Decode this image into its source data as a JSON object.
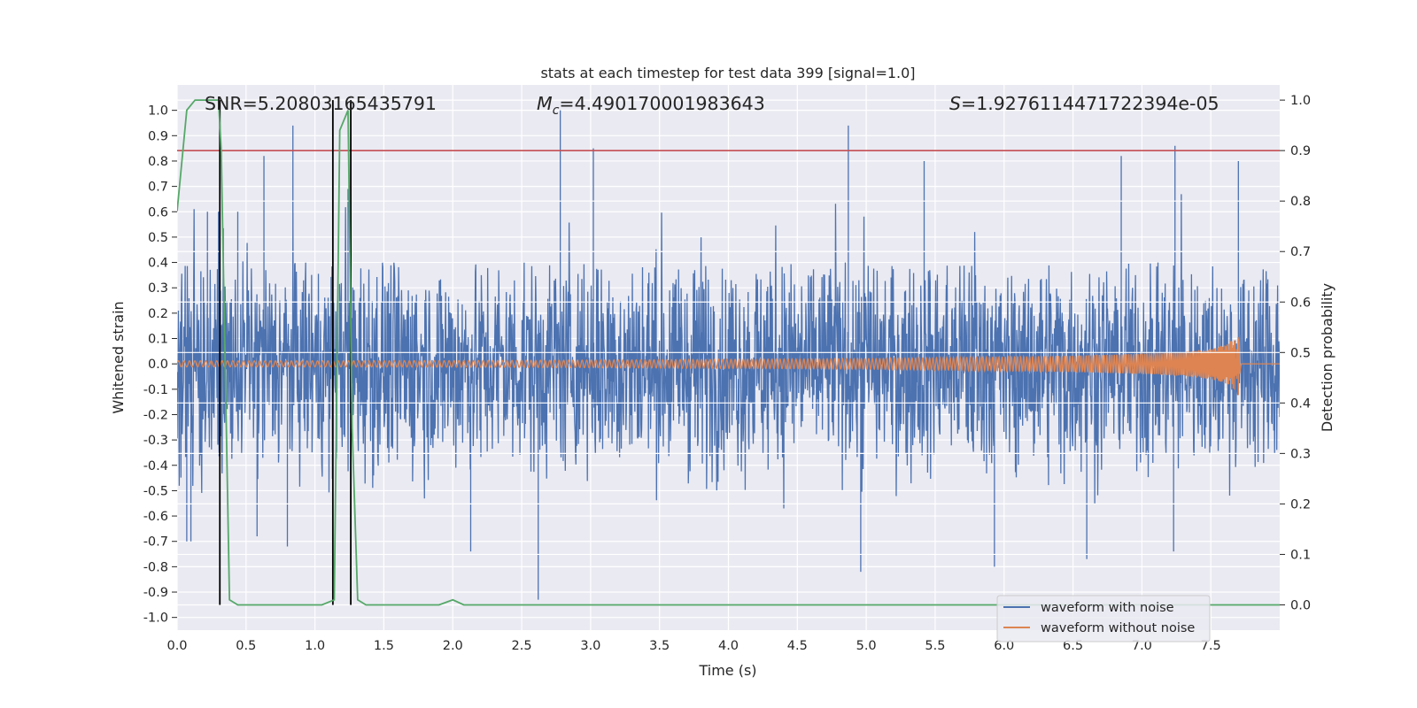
{
  "chart_data": {
    "type": "line",
    "title": "stats at each timestep for test data 399 [signal=1.0]",
    "xlabel": "Time (s)",
    "ylabel_left": "Whitened strain",
    "ylabel_right": "Detection probability",
    "xlim": [
      0.0,
      8.0
    ],
    "ylim_left": [
      -1.05,
      1.1
    ],
    "ylim_right": [
      -0.05,
      1.03
    ],
    "x_ticks": [
      "0.0",
      "0.5",
      "1.0",
      "1.5",
      "2.0",
      "2.5",
      "3.0",
      "3.5",
      "4.0",
      "4.5",
      "5.0",
      "5.5",
      "6.0",
      "6.5",
      "7.0",
      "7.5"
    ],
    "y_left_ticks": [
      "-1.0",
      "-0.9",
      "-0.8",
      "-0.7",
      "-0.6",
      "-0.5",
      "-0.4",
      "-0.3",
      "-0.2",
      "-0.1",
      "0.0",
      "0.1",
      "0.2",
      "0.3",
      "0.4",
      "0.5",
      "0.6",
      "0.7",
      "0.8",
      "0.9",
      "1.0"
    ],
    "y_right_ticks": [
      "0.0",
      "0.1",
      "0.2",
      "0.3",
      "0.4",
      "0.5",
      "0.6",
      "0.7",
      "0.8",
      "0.9",
      "1.0"
    ],
    "grid": true,
    "legend_position": "bottom-right",
    "annotations": {
      "snr_text": "SNR=5.20803165435791",
      "mc_symbol": "M",
      "mc_subscript": "c",
      "mc_value": "=4.490170001983643",
      "s_symbol": "S",
      "s_value": "=1.9276114471722394e-05"
    },
    "series": [
      {
        "name": "waveform with noise",
        "color": "#4c72b0",
        "axis": "left",
        "envelope_upper": 0.4,
        "envelope_lower": -0.6,
        "peaks": [
          [
            0.22,
            0.6
          ],
          [
            0.3,
            0.6
          ],
          [
            0.44,
            0.6
          ],
          [
            0.63,
            0.82
          ],
          [
            0.84,
            0.94
          ],
          [
            1.24,
            0.69
          ],
          [
            2.78,
            1.0
          ],
          [
            3.02,
            0.85
          ],
          [
            4.87,
            0.94
          ],
          [
            5.42,
            0.8
          ],
          [
            6.85,
            0.82
          ],
          [
            7.24,
            0.86
          ],
          [
            7.7,
            0.8
          ]
        ],
        "troughs": [
          [
            0.07,
            -0.7
          ],
          [
            0.1,
            -0.7
          ],
          [
            0.58,
            -0.68
          ],
          [
            0.8,
            -0.72
          ],
          [
            2.13,
            -0.74
          ],
          [
            2.62,
            -0.93
          ],
          [
            4.96,
            -0.82
          ],
          [
            5.93,
            -0.8
          ],
          [
            6.6,
            -0.77
          ],
          [
            7.23,
            -0.74
          ]
        ]
      },
      {
        "name": "waveform without noise",
        "color": "#dd8452",
        "axis": "left",
        "x": [
          0.0,
          1.0,
          2.0,
          3.0,
          4.0,
          5.0,
          6.0,
          6.5,
          7.0,
          7.3,
          7.5,
          7.6,
          7.67,
          7.7,
          7.72,
          8.0
        ],
        "amplitude": [
          0.012,
          0.012,
          0.013,
          0.015,
          0.018,
          0.021,
          0.028,
          0.032,
          0.04,
          0.048,
          0.06,
          0.075,
          0.1,
          0.13,
          0.0,
          0.0
        ]
      },
      {
        "name": "Detection probability",
        "color": "#55a868",
        "axis": "right",
        "x": [
          0.0,
          0.07,
          0.13,
          0.3,
          0.32,
          0.38,
          0.44,
          1.05,
          1.14,
          1.18,
          1.24,
          1.27,
          1.31,
          1.37,
          1.9,
          2.0,
          2.08,
          8.0
        ],
        "y": [
          0.78,
          0.98,
          1.0,
          1.0,
          0.9,
          0.01,
          0.0,
          0.0,
          0.01,
          0.94,
          0.98,
          0.35,
          0.01,
          0.0,
          0.0,
          0.01,
          0.0,
          0.0
        ]
      }
    ],
    "reference_line": {
      "axis": "right",
      "value": 0.9,
      "color": "#c44e52"
    },
    "vertical_markers": {
      "color": "#000000",
      "x": [
        0.31,
        1.13,
        1.26
      ]
    }
  }
}
